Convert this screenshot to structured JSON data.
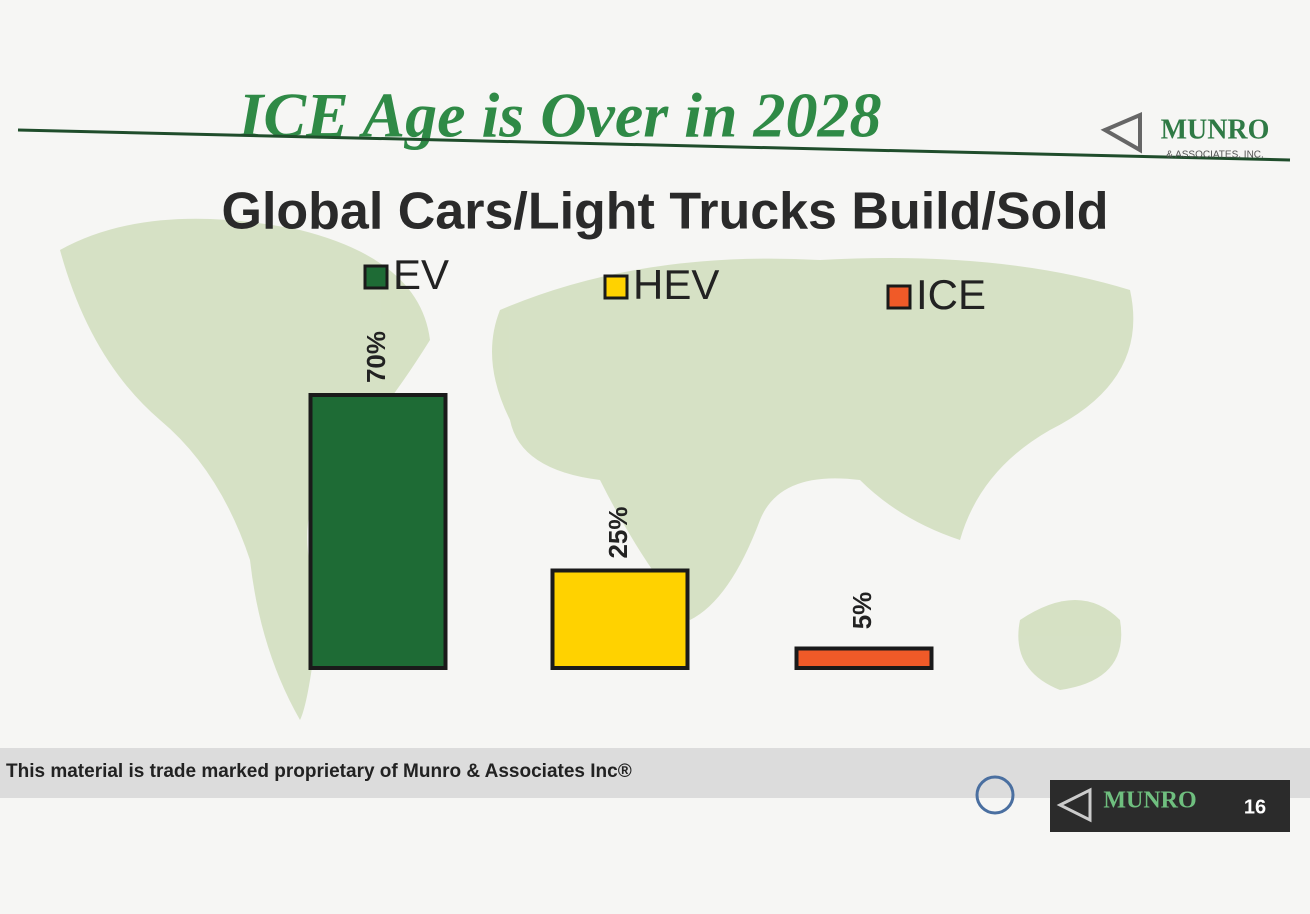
{
  "header": {
    "title": "ICE Age is Over in 2028",
    "logo": "MUNRO",
    "logo_sub": "& ASSOCIATES, INC."
  },
  "chart_data": {
    "type": "bar",
    "title": "Global Cars/Light Trucks Build/Sold",
    "categories": [
      "EV",
      "HEV",
      "ICE"
    ],
    "values": [
      70,
      25,
      5
    ],
    "value_labels": [
      "70%",
      "25%",
      "5%"
    ],
    "colors": [
      "#1e6b35",
      "#ffd200",
      "#f05a28"
    ]
  },
  "footer": {
    "text": "This material is trade marked proprietary of Munro & Associates Inc®",
    "page": "16"
  }
}
